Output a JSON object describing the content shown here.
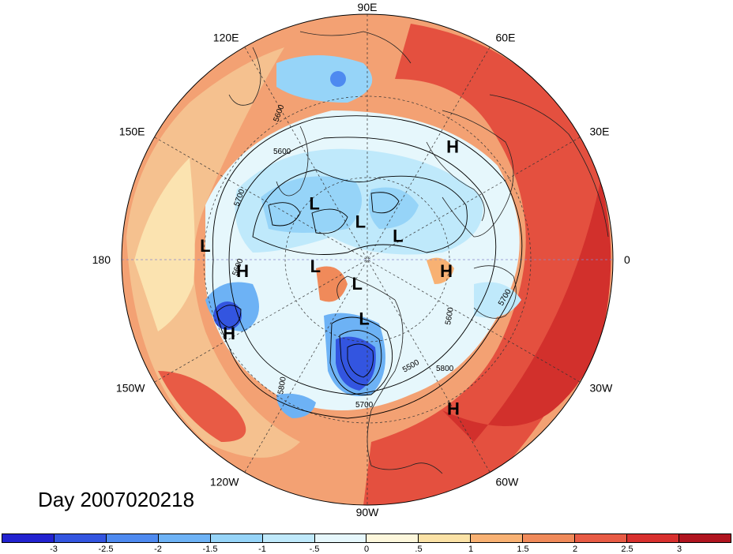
{
  "title": "Day 2007020218",
  "meridian_labels": [
    {
      "text": "90E",
      "deg": 90
    },
    {
      "text": "60E",
      "deg": 60
    },
    {
      "text": "30E",
      "deg": 30
    },
    {
      "text": "0",
      "deg": 0
    },
    {
      "text": "30W",
      "deg": -30
    },
    {
      "text": "60W",
      "deg": -60
    },
    {
      "text": "90W",
      "deg": -90
    },
    {
      "text": "120W",
      "deg": -120
    },
    {
      "text": "150W",
      "deg": -150
    },
    {
      "text": "180",
      "deg": 180
    },
    {
      "text": "150E",
      "deg": 150
    },
    {
      "text": "120E",
      "deg": 120
    }
  ],
  "pressure_centers": [
    {
      "type": "H",
      "lon": 53,
      "lat": 30
    },
    {
      "type": "H",
      "lon": -8,
      "lat": 54
    },
    {
      "type": "H",
      "lon": -60,
      "lat": 20
    },
    {
      "type": "H",
      "lon": -152,
      "lat": 25
    },
    {
      "type": "H",
      "lon": -175,
      "lat": 36
    },
    {
      "type": "L",
      "lon": 175,
      "lat": 23
    },
    {
      "type": "L",
      "lon": 133,
      "lat": 55
    },
    {
      "type": "L",
      "lon": -173,
      "lat": 66
    },
    {
      "type": "L",
      "lon": 100,
      "lat": 72
    },
    {
      "type": "L",
      "lon": 38,
      "lat": 72
    },
    {
      "type": "L",
      "lon": -113,
      "lat": 78
    },
    {
      "type": "L",
      "lon": -93,
      "lat": 63
    }
  ],
  "contour_labels": [
    "5600",
    "5600",
    "5700",
    "5600",
    "5700",
    "5600",
    "5800",
    "5500",
    "5700",
    "5800",
    "5700"
  ],
  "colorbar": {
    "colors": [
      "#2222d0",
      "#3355e0",
      "#4e8af0",
      "#6db2f5",
      "#96d4f8",
      "#bfe9fb",
      "#e6f7fc",
      "#fdf7dc",
      "#fbe2a6",
      "#f8b173",
      "#f08a5a",
      "#e85b45",
      "#d8302e",
      "#b0141f"
    ],
    "ticks": [
      "-3",
      "-2.5",
      "-2",
      "-1.5",
      "-1",
      "-.5",
      "0",
      ".5",
      "1",
      "1.5",
      "2",
      "2.5",
      "3"
    ]
  }
}
